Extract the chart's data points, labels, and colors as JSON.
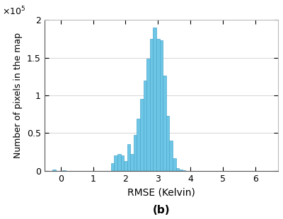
{
  "xlabel": "RMSE (Kelvin)",
  "ylabel": "Number of pixels in the map",
  "label_b": "(b)",
  "xlim": [
    -0.5,
    6.7
  ],
  "ylim": [
    0,
    200000
  ],
  "yticks": [
    0,
    50000,
    100000,
    150000,
    200000
  ],
  "ytick_labels": [
    "0",
    "0.5",
    "1",
    "1.5",
    "2"
  ],
  "xticks": [
    0,
    1,
    2,
    3,
    4,
    5,
    6
  ],
  "bar_color": "#6EC6E6",
  "bar_edge_color": "#4AA8CC",
  "grid_color": "#d0d0d0",
  "bin_width": 0.1,
  "bin_starts": [
    -0.25,
    0.05,
    1.55,
    1.65,
    1.75,
    1.85,
    1.95,
    2.05,
    2.15,
    2.25,
    2.35,
    2.45,
    2.55,
    2.65,
    2.75,
    2.85,
    2.95,
    3.05,
    3.15,
    3.25,
    3.35,
    3.45,
    3.55,
    3.65,
    3.75,
    3.85,
    3.95,
    4.05
  ],
  "bin_heights": [
    2000,
    500,
    10000,
    20000,
    22000,
    20000,
    13000,
    35000,
    22000,
    48000,
    69000,
    95000,
    120000,
    149000,
    175000,
    190000,
    175000,
    173000,
    126000,
    73000,
    40000,
    17000,
    4000,
    1500,
    500,
    200,
    100,
    100
  ]
}
